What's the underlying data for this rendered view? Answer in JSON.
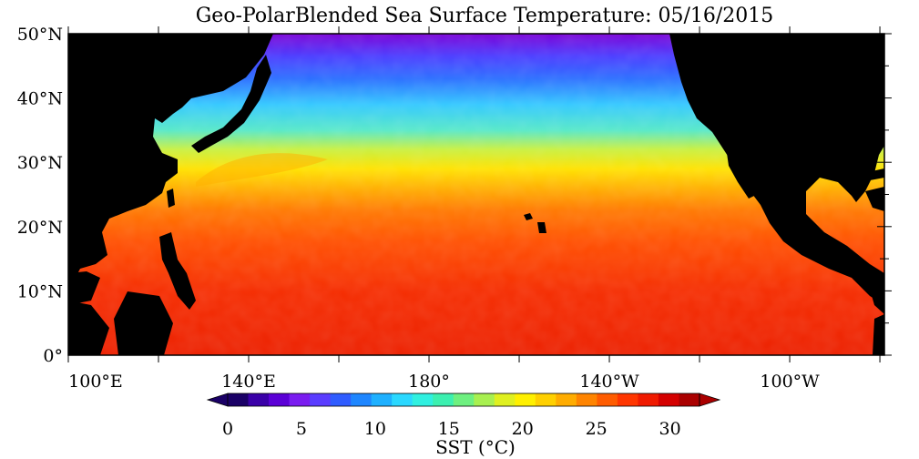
{
  "title": "Geo-PolarBlended Sea Surface Temperature: 05/16/2015",
  "map": {
    "region": "North Pacific Ocean",
    "lat_range": [
      0,
      50
    ],
    "lon_range": [
      100,
      281
    ],
    "land_color": "#000000",
    "lat_ticks": [
      {
        "value": 0,
        "label": "0°"
      },
      {
        "value": 10,
        "label": "10°N"
      },
      {
        "value": 20,
        "label": "20°N"
      },
      {
        "value": 30,
        "label": "30°N"
      },
      {
        "value": 40,
        "label": "40°N"
      },
      {
        "value": 50,
        "label": "50°N"
      }
    ],
    "lon_ticks": [
      {
        "value": 100,
        "label": "100°E"
      },
      {
        "value": 140,
        "label": "140°E"
      },
      {
        "value": 180,
        "label": "180°"
      },
      {
        "value": 220,
        "label": "140°W"
      },
      {
        "value": 260,
        "label": "100°W"
      }
    ],
    "lon_minor_ticks": [
      120,
      160,
      200,
      240,
      280
    ]
  },
  "colorbar": {
    "label": "SST (°C)",
    "min": 0,
    "max": 32,
    "tick_values": [
      0,
      5,
      10,
      15,
      20,
      25,
      30
    ],
    "tick_labels": [
      "0",
      "5",
      "10",
      "15",
      "20",
      "25",
      "30"
    ],
    "colors": [
      "#1a0066",
      "#3a00a8",
      "#5b00d6",
      "#7a1cf0",
      "#5a3cff",
      "#2f5cff",
      "#1e86ff",
      "#1eb0ff",
      "#2ad8ff",
      "#30f0e0",
      "#3cf0b0",
      "#6ef080",
      "#a8f050",
      "#dff020",
      "#fff000",
      "#ffd000",
      "#ffac00",
      "#ff8400",
      "#ff5c00",
      "#ff3600",
      "#f01a00",
      "#d40000",
      "#aa0000"
    ]
  }
}
